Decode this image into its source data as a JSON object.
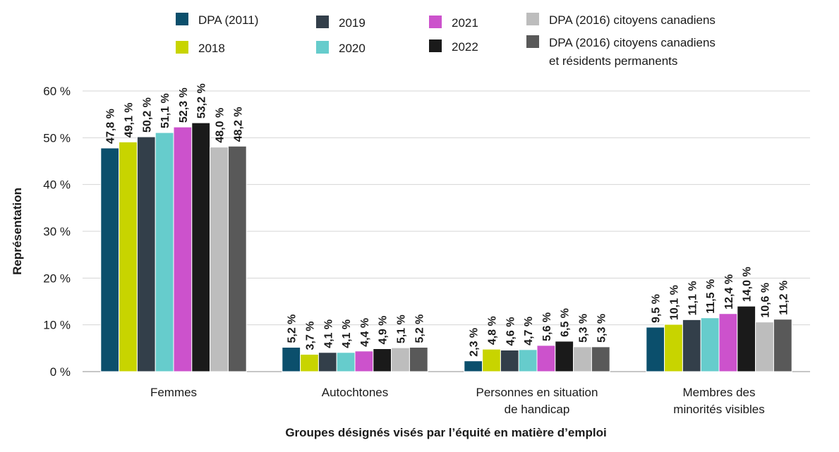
{
  "chart_data": {
    "type": "bar",
    "categories": [
      [
        "Femmes"
      ],
      [
        "Autochtones"
      ],
      [
        "Personnes en situation",
        "de handicap"
      ],
      [
        "Membres des",
        "minorités visibles"
      ]
    ],
    "series": [
      {
        "name": "DPA (2011)",
        "color": "#0b4f6c",
        "values": [
          47.8,
          5.2,
          2.3,
          9.5
        ],
        "labels": [
          "47,8 %",
          "5,2 %",
          "2,3 %",
          "9,5 %"
        ]
      },
      {
        "name": "2018",
        "color": "#c8d400",
        "values": [
          49.1,
          3.7,
          4.8,
          10.1
        ],
        "labels": [
          "49,1 %",
          "3,7 %",
          "4,8 %",
          "10,1 %"
        ]
      },
      {
        "name": "2019",
        "color": "#333f4a",
        "values": [
          50.2,
          4.1,
          4.6,
          11.1
        ],
        "labels": [
          "50,2 %",
          "4,1 %",
          "4,6 %",
          "11,1 %"
        ]
      },
      {
        "name": "2020",
        "color": "#66cccc",
        "values": [
          51.1,
          4.1,
          4.7,
          11.5
        ],
        "labels": [
          "51,1 %",
          "4,1 %",
          "4,7 %",
          "11,5 %"
        ]
      },
      {
        "name": "2021",
        "color": "#cc52cc",
        "values": [
          52.3,
          4.4,
          5.6,
          12.4
        ],
        "labels": [
          "52,3 %",
          "4,4 %",
          "5,6 %",
          "12,4 %"
        ]
      },
      {
        "name": "2022",
        "color": "#1a1a1a",
        "values": [
          53.2,
          4.9,
          6.5,
          14.0
        ],
        "labels": [
          "53,2 %",
          "4,9 %",
          "6,5 %",
          "14,0 %"
        ]
      },
      {
        "name": "DPA (2016) citoyens canadiens",
        "color": "#bdbdbd",
        "values": [
          48.0,
          5.1,
          5.3,
          10.6
        ],
        "labels": [
          "48,0 %",
          "5,1 %",
          "5,3 %",
          "10,6 %"
        ]
      },
      {
        "name": "DPA (2016) citoyens canadiens et résidents permanents",
        "legend_lines": [
          "DPA (2016) citoyens canadiens",
          "et résidents permanents"
        ],
        "color": "#595959",
        "values": [
          48.2,
          5.2,
          5.3,
          11.2
        ],
        "labels": [
          "48,2 %",
          "5,2 %",
          "5,3 %",
          "11,2 %"
        ]
      }
    ],
    "xlabel": "Groupes désignés visés par l’équité en matière d’emploi",
    "ylabel": "Représentation",
    "ylim": [
      0,
      60
    ],
    "yticks": [
      {
        "value": 0,
        "label": "0 %"
      },
      {
        "value": 10,
        "label": "10 %"
      },
      {
        "value": 20,
        "label": "20 %"
      },
      {
        "value": 30,
        "label": "30 %"
      },
      {
        "value": 40,
        "label": "40 %"
      },
      {
        "value": 50,
        "label": "50 %"
      },
      {
        "value": 60,
        "label": "60 %"
      }
    ],
    "grid": true,
    "legend_position": "top"
  }
}
